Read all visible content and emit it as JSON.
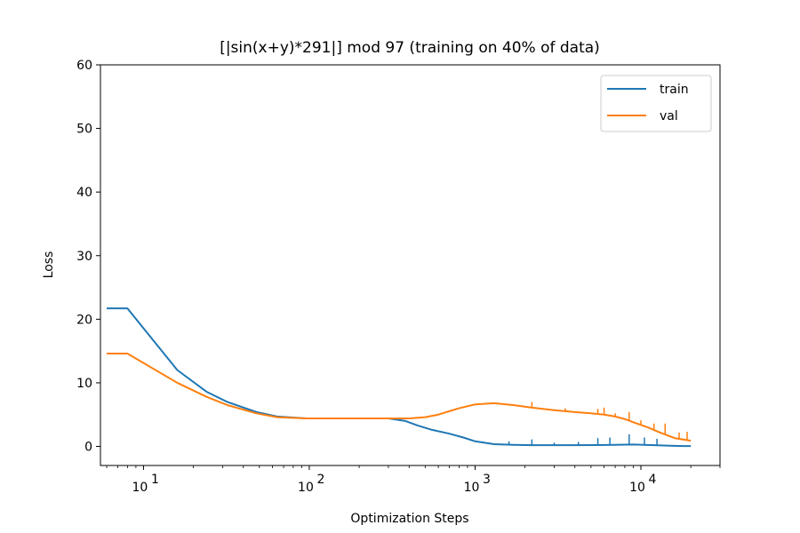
{
  "chart_data": {
    "type": "line",
    "title": "[|sin(x+y)*291|] mod 97 (training on 40% of data)",
    "xlabel": "Optimization Steps",
    "ylabel": "Loss",
    "xscale": "log",
    "xlim": [
      5.5,
      30000
    ],
    "ylim": [
      -3,
      60
    ],
    "x_ticks": [
      {
        "value": 10,
        "base": "10",
        "exp": "1"
      },
      {
        "value": 100,
        "base": "10",
        "exp": "2"
      },
      {
        "value": 1000,
        "base": "10",
        "exp": "3"
      },
      {
        "value": 10000,
        "base": "10",
        "exp": "4"
      }
    ],
    "y_ticks": [
      0,
      10,
      20,
      30,
      40,
      50,
      60
    ],
    "grid": false,
    "legend_position": "top-right",
    "series": [
      {
        "name": "train",
        "color": "#1f77b4",
        "x": [
          6,
          8,
          16,
          24,
          32,
          48,
          64,
          96,
          128,
          200,
          300,
          380,
          450,
          550,
          700,
          850,
          1000,
          1300,
          1700,
          2200,
          3000,
          4000,
          5500,
          7000,
          9000,
          12000,
          15000,
          18000,
          20000
        ],
        "y": [
          21.7,
          21.7,
          12.0,
          8.6,
          7.0,
          5.4,
          4.7,
          4.4,
          4.4,
          4.4,
          4.4,
          4.0,
          3.3,
          2.6,
          2.0,
          1.4,
          0.8,
          0.35,
          0.25,
          0.2,
          0.2,
          0.2,
          0.22,
          0.25,
          0.3,
          0.2,
          0.1,
          0.05,
          0.05
        ],
        "spikes": [
          {
            "x": 1600,
            "y": 0.8
          },
          {
            "x": 2200,
            "y": 1.1
          },
          {
            "x": 3000,
            "y": 0.6
          },
          {
            "x": 4200,
            "y": 0.7
          },
          {
            "x": 5500,
            "y": 1.3
          },
          {
            "x": 6500,
            "y": 1.4
          },
          {
            "x": 8500,
            "y": 1.9
          },
          {
            "x": 10500,
            "y": 1.4
          },
          {
            "x": 12500,
            "y": 1.2
          }
        ]
      },
      {
        "name": "val",
        "color": "#ff7f0e",
        "x": [
          6,
          8,
          16,
          24,
          32,
          48,
          64,
          96,
          128,
          200,
          300,
          400,
          500,
          600,
          800,
          1000,
          1300,
          1700,
          2200,
          3000,
          4000,
          5000,
          6000,
          7000,
          8000,
          9000,
          11000,
          13000,
          16000,
          20000
        ],
        "y": [
          14.6,
          14.6,
          10.0,
          7.8,
          6.5,
          5.2,
          4.6,
          4.4,
          4.4,
          4.4,
          4.4,
          4.4,
          4.6,
          5.0,
          6.0,
          6.6,
          6.8,
          6.5,
          6.1,
          5.7,
          5.4,
          5.2,
          5.0,
          4.7,
          4.3,
          3.8,
          3.0,
          2.2,
          1.3,
          0.9
        ],
        "spikes": [
          {
            "x": 2200,
            "y": 7.0
          },
          {
            "x": 3500,
            "y": 6.0
          },
          {
            "x": 5500,
            "y": 5.9
          },
          {
            "x": 6000,
            "y": 6.1
          },
          {
            "x": 7000,
            "y": 5.2
          },
          {
            "x": 8500,
            "y": 5.4
          },
          {
            "x": 10000,
            "y": 4.1
          },
          {
            "x": 12000,
            "y": 3.6
          },
          {
            "x": 14000,
            "y": 3.6
          },
          {
            "x": 17000,
            "y": 2.2
          },
          {
            "x": 19000,
            "y": 2.3
          }
        ]
      }
    ]
  }
}
